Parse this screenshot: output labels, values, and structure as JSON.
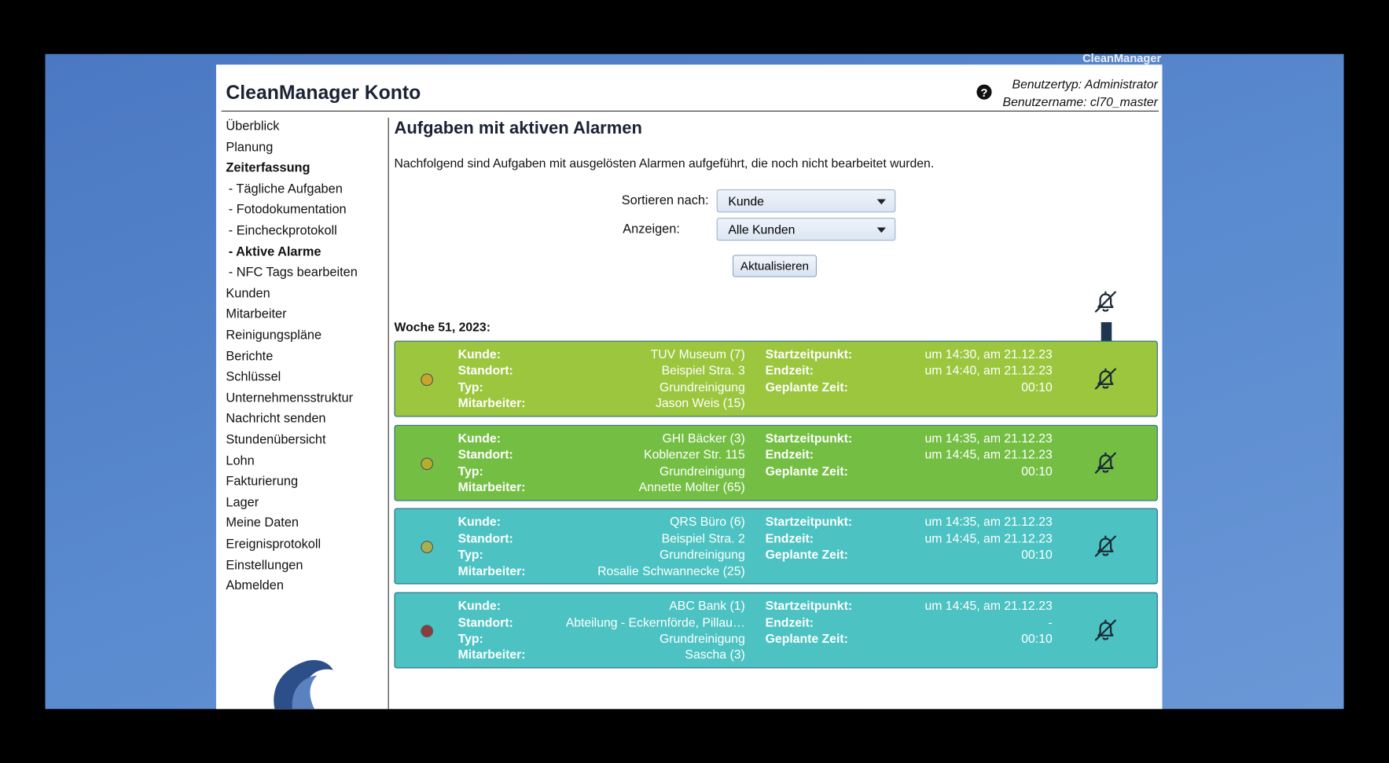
{
  "header": {
    "brand": "CleanManager",
    "title": "CleanManager Konto",
    "user_type": "Benutzertyp: Administrator",
    "user_name": "Benutzername: cl70_master"
  },
  "nav": [
    {
      "text": "Überblick"
    },
    {
      "text": "Planung"
    },
    {
      "text": "Zeiterfassung",
      "bold": true
    },
    {
      "text": "- Tägliche Aufgaben",
      "sub": true
    },
    {
      "text": "- Fotodokumentation",
      "sub": true
    },
    {
      "text": "- Eincheckprotokoll",
      "sub": true
    },
    {
      "text": "- Aktive Alarme",
      "sub": true,
      "bold": true
    },
    {
      "text": "- NFC Tags bearbeiten",
      "sub": true
    },
    {
      "text": "Kunden"
    },
    {
      "text": "Mitarbeiter"
    },
    {
      "text": "Reinigungspläne"
    },
    {
      "text": "Berichte"
    },
    {
      "text": "Schlüssel"
    },
    {
      "text": "Unternehmensstruktur"
    },
    {
      "text": "Nachricht senden"
    },
    {
      "text": "Stundenübersicht"
    },
    {
      "text": "Lohn"
    },
    {
      "text": "Fakturierung"
    },
    {
      "text": "Lager"
    },
    {
      "text": "Meine Daten"
    },
    {
      "text": "Ereignisprotokoll"
    },
    {
      "text": "Einstellungen"
    },
    {
      "text": "Abmelden"
    }
  ],
  "main": {
    "heading": "Aufgaben mit aktiven Alarmen",
    "intro": "Nachfolgend sind Aufgaben mit ausgelösten Alarmen aufgeführt, die noch nicht bearbeitet wurden.",
    "sort_label": "Sortieren nach:",
    "sort_value": "Kunde",
    "show_label": "Anzeigen:",
    "show_value": "Alle Kunden",
    "button": "Aktualisieren",
    "week": "Woche 51, 2023:",
    "field_labels": {
      "customer": "Kunde:",
      "site": "Standort:",
      "type": "Typ:",
      "employee": "Mitarbeiter:",
      "start": "Startzeitpunkt:",
      "end": "Endzeit:",
      "planned": "Geplante Zeit:"
    },
    "cards": [
      {
        "color": "#9cc63e",
        "dot": "#c8a62c",
        "customer": "TUV Museum (7)",
        "site": "Beispiel Stra. 3",
        "type": "Grundreinigung",
        "employee": "Jason Weis (15)",
        "start": "um 14:30, am 21.12.23",
        "end": "um 14:40, am 21.12.23",
        "planned": "00:10"
      },
      {
        "color": "#74bf43",
        "dot": "#b4ad2e",
        "customer": "GHI Bäcker (3)",
        "site": "Koblenzer Str. 115",
        "type": "Grundreinigung",
        "employee": "Annette Molter (65)",
        "start": "um 14:35, am 21.12.23",
        "end": "um 14:45, am 21.12.23",
        "planned": "00:10"
      },
      {
        "color": "#4cc3c2",
        "dot": "#a6b154",
        "customer": "QRS Büro (6)",
        "site": "Beispiel Stra. 2",
        "type": "Grundreinigung",
        "employee": "Rosalie Schwannecke (25)",
        "start": "um 14:35, am 21.12.23",
        "end": "um 14:45, am 21.12.23",
        "planned": "00:10"
      },
      {
        "color": "#4cc3c2",
        "dot": "#8a3c3e",
        "customer": "ABC Bank (1)",
        "site": "Abteilung - Eckernförde, Pillau…",
        "type": "Grundreinigung",
        "employee": "Sascha (3)",
        "start": "um 14:45, am 21.12.23",
        "end": "-",
        "planned": "00:10"
      }
    ]
  }
}
